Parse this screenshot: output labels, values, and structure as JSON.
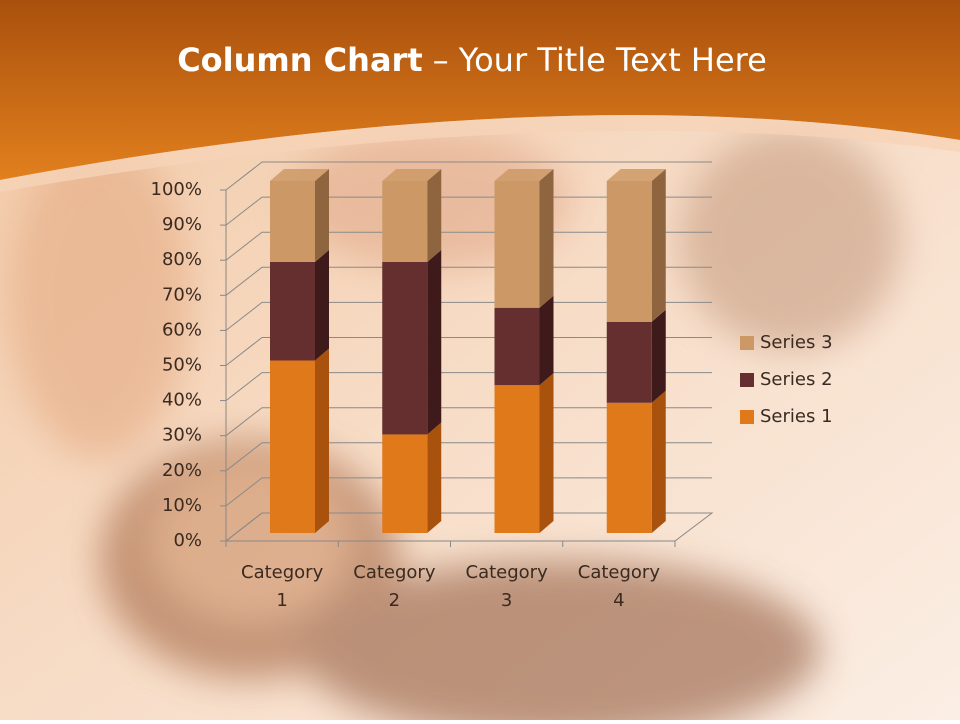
{
  "chart_data": {
    "type": "stacked_bar_3d",
    "title": [
      "Column Chart",
      "– Your Title Text Here"
    ],
    "categories": [
      "Category 1",
      "Category 2",
      "Category 3",
      "Category 4"
    ],
    "series": [
      {
        "name": "Series 1",
        "color": "#e0791a",
        "side": "#a9520e",
        "values": [
          49,
          28,
          42,
          37
        ]
      },
      {
        "name": "Series 2",
        "color": "#652f2f",
        "side": "#3f1a1a",
        "values": [
          28,
          49,
          22,
          23
        ]
      },
      {
        "name": "Series 3",
        "color": "#cc9966",
        "side": "#8f6540",
        "values": [
          23,
          23,
          36,
          40
        ]
      }
    ],
    "ylim": [
      0,
      100
    ],
    "yticks": [
      {
        "value": 0,
        "label": "0%"
      },
      {
        "value": 10,
        "label": "10%"
      },
      {
        "value": 20,
        "label": "20%"
      },
      {
        "value": 30,
        "label": "30%"
      },
      {
        "value": 40,
        "label": "40%"
      },
      {
        "value": 50,
        "label": "50%"
      },
      {
        "value": 60,
        "label": "60%"
      },
      {
        "value": 70,
        "label": "70%"
      },
      {
        "value": 80,
        "label": "80%"
      },
      {
        "value": 90,
        "label": "90%"
      },
      {
        "value": 100,
        "label": "100%"
      }
    ],
    "grid": true,
    "legend": "right"
  }
}
